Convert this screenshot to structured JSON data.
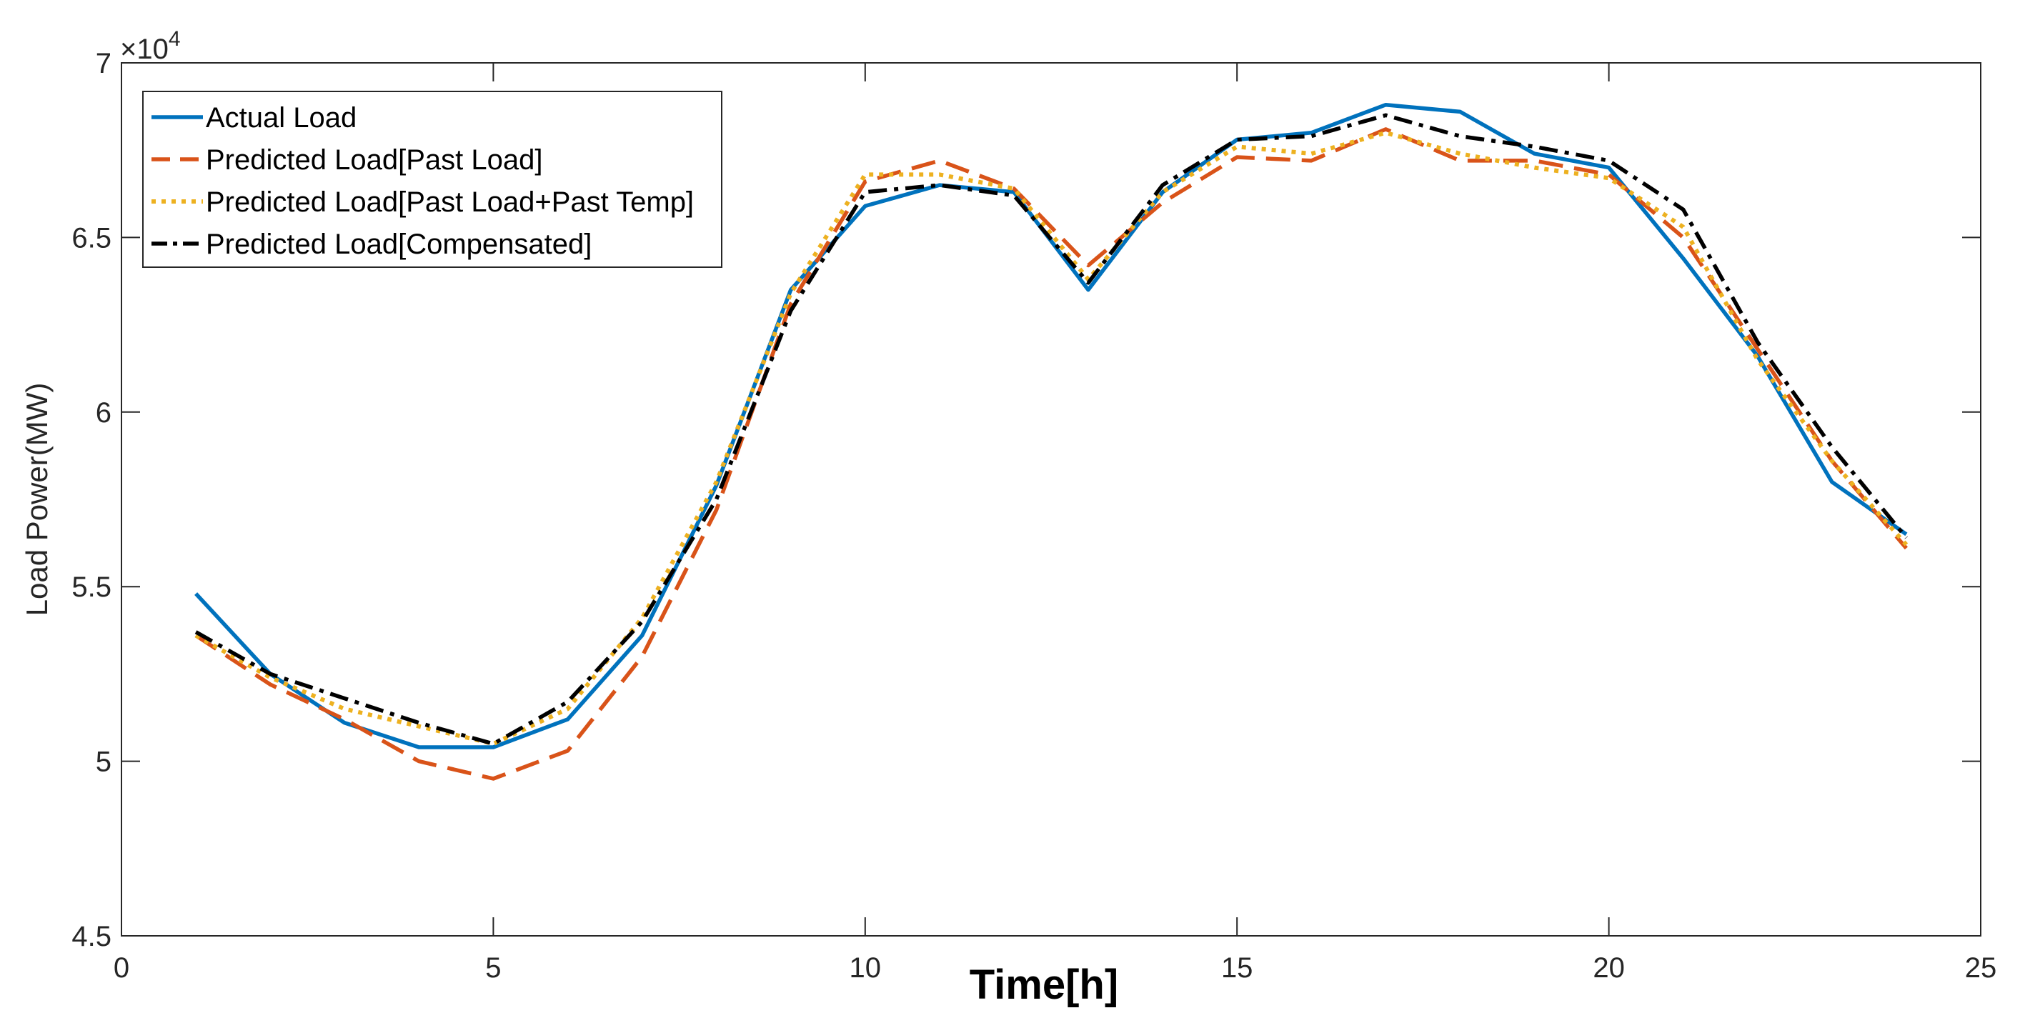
{
  "chart_data": {
    "type": "line",
    "title": "",
    "xlabel": "Time[h]",
    "ylabel": "Load Power(MW)",
    "y_multiplier_base": "×10",
    "y_multiplier_exp": "4",
    "xlim": [
      0,
      25
    ],
    "ylim": [
      4.5,
      7
    ],
    "xticks": [
      0,
      5,
      10,
      15,
      20,
      25
    ],
    "yticks": [
      4.5,
      5,
      5.5,
      6,
      6.5,
      7
    ],
    "xtick_labels": [
      "0",
      "5",
      "10",
      "15",
      "20",
      "25"
    ],
    "ytick_labels": [
      "4.5",
      "5",
      "5.5",
      "6",
      "6.5",
      "7"
    ],
    "grid": false,
    "legend_position": "top-left",
    "x": [
      1,
      2,
      3,
      4,
      5,
      6,
      7,
      8,
      9,
      10,
      11,
      12,
      13,
      14,
      15,
      16,
      17,
      18,
      19,
      20,
      21,
      22,
      23,
      24
    ],
    "series": [
      {
        "name": "Actual Load",
        "color": "#0072BD",
        "style": "solid",
        "values": [
          5.48,
          5.25,
          5.11,
          5.04,
          5.04,
          5.12,
          5.36,
          5.79,
          6.35,
          6.59,
          6.65,
          6.63,
          6.35,
          6.63,
          6.78,
          6.8,
          6.88,
          6.86,
          6.74,
          6.7,
          6.44,
          6.16,
          5.8,
          5.65
        ]
      },
      {
        "name": "Predicted Load[Past Load]",
        "color": "#D95319",
        "style": "dashed",
        "values": [
          5.36,
          5.22,
          5.12,
          5.0,
          4.95,
          5.03,
          5.3,
          5.72,
          6.31,
          6.66,
          6.72,
          6.64,
          6.42,
          6.6,
          6.73,
          6.72,
          6.81,
          6.72,
          6.72,
          6.68,
          6.5,
          6.18,
          5.86,
          5.61
        ]
      },
      {
        "name": "Predicted Load[Past Load+Past Temp]",
        "color": "#EDB120",
        "style": "dotted",
        "values": [
          5.36,
          5.24,
          5.15,
          5.1,
          5.05,
          5.15,
          5.41,
          5.8,
          6.34,
          6.68,
          6.68,
          6.64,
          6.38,
          6.63,
          6.76,
          6.74,
          6.8,
          6.74,
          6.7,
          6.67,
          6.53,
          6.15,
          5.86,
          5.62
        ]
      },
      {
        "name": "Predicted Load[Compensated]",
        "color": "#000000",
        "style": "dashdot",
        "values": [
          5.37,
          5.25,
          5.18,
          5.11,
          5.05,
          5.17,
          5.4,
          5.75,
          6.29,
          6.63,
          6.65,
          6.62,
          6.37,
          6.65,
          6.78,
          6.79,
          6.85,
          6.79,
          6.76,
          6.72,
          6.58,
          6.2,
          5.9,
          5.64
        ]
      }
    ]
  }
}
